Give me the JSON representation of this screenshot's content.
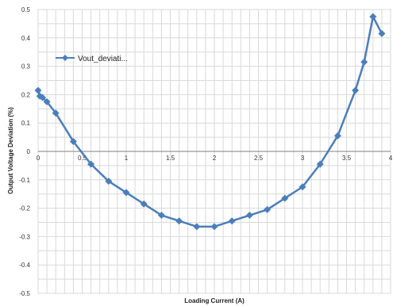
{
  "chart_data": {
    "type": "line",
    "xlabel": "Loading Current (A)",
    "ylabel": "Output Voltage Deviation (%)",
    "xlim": [
      0,
      4
    ],
    "ylim": [
      -0.5,
      0.5
    ],
    "x_ticks": [
      "0",
      "0.5",
      "1",
      "1.5",
      "2",
      "2.5",
      "3",
      "3.5",
      "4"
    ],
    "y_ticks": [
      "0.5",
      "0.4",
      "0.3",
      "0.2",
      "0.1",
      "0",
      "-0.1",
      "-0.2",
      "-0.3",
      "-0.4",
      "-0.5"
    ],
    "grid": true,
    "legend_position": "top-left",
    "series_color": "#4a7ebb",
    "series": [
      {
        "name": "Vout_deviati...",
        "marker": "diamond",
        "x": [
          0.0,
          0.02,
          0.05,
          0.1,
          0.2,
          0.4,
          0.6,
          0.8,
          1.0,
          1.2,
          1.4,
          1.6,
          1.8,
          2.0,
          2.2,
          2.4,
          2.6,
          2.8,
          3.0,
          3.2,
          3.4,
          3.6,
          3.7,
          3.8,
          3.9
        ],
        "y": [
          0.215,
          0.195,
          0.19,
          0.175,
          0.135,
          0.035,
          -0.045,
          -0.105,
          -0.145,
          -0.185,
          -0.225,
          -0.245,
          -0.265,
          -0.265,
          -0.245,
          -0.225,
          -0.205,
          -0.165,
          -0.125,
          -0.045,
          0.055,
          0.215,
          0.315,
          0.475,
          0.415
        ]
      }
    ]
  }
}
